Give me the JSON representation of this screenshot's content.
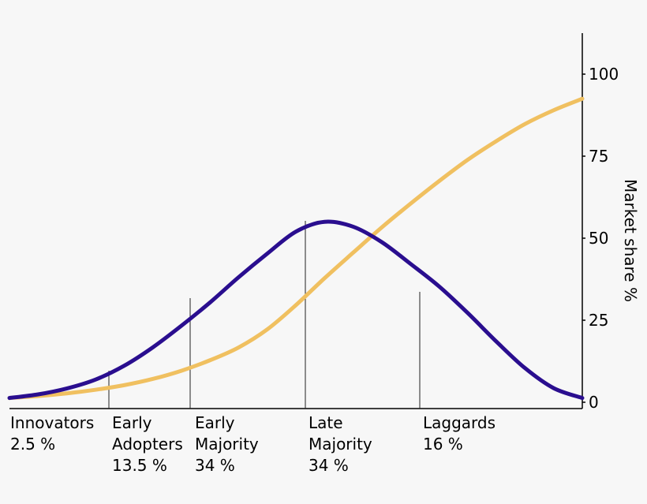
{
  "chart_data": {
    "type": "line",
    "title": "",
    "xlabel": "",
    "ylabel": "Market share %",
    "y_axis_position": "right",
    "ylim": [
      0,
      100
    ],
    "y_ticks": [
      0,
      25,
      50,
      75,
      100
    ],
    "y_tick_labels": [
      "0",
      "25",
      "50",
      "75",
      "100"
    ],
    "x": [
      0,
      1,
      2,
      3,
      4,
      5,
      6,
      7,
      8,
      9,
      10,
      11,
      12,
      13,
      14,
      15,
      16,
      17,
      18,
      19,
      20
    ],
    "series": [
      {
        "color": "#2a0e8f",
        "values": [
          1.3,
          2.4,
          4.2,
          6.9,
          11.1,
          16.7,
          23.3,
          30.4,
          38.1,
          45.3,
          52.0,
          55.0,
          53.5,
          48.8,
          42.2,
          35.3,
          27.2,
          18.5,
          10.4,
          4.3,
          1.3
        ]
      },
      {
        "color": "#f0c060",
        "values": [
          1.3,
          1.9,
          2.7,
          3.8,
          5.2,
          7.1,
          9.6,
          12.8,
          16.7,
          22.2,
          29.6,
          37.8,
          45.6,
          53.3,
          60.5,
          67.4,
          73.9,
          79.6,
          84.8,
          89.0,
          92.5
        ]
      }
    ],
    "segments": [
      {
        "name": "Innovators",
        "share": "2.5 %"
      },
      {
        "name": "Early Adopters",
        "share": "13.5 %"
      },
      {
        "name": "Early Majority",
        "share": "34 %"
      },
      {
        "name": "Late Majority",
        "share": "34 %"
      },
      {
        "name": "Laggards",
        "share": "16 %"
      }
    ],
    "grid": false
  }
}
